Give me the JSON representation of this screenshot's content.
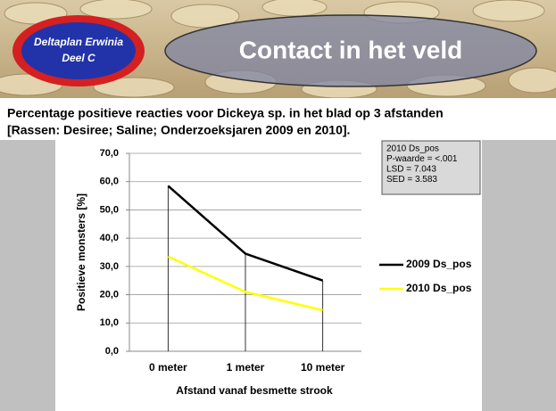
{
  "header": {
    "badge": [
      "Deltaplan Erwinia",
      "Deel C"
    ],
    "title": "Contact in het veld"
  },
  "subtitle": [
    "Percentage positieve reacties voor Dickeya sp. in het blad op 3 afstanden",
    "[Rassen: Desiree; Saline; Onderzoeksjaren 2009 en 2010]."
  ],
  "chart_data": {
    "type": "line",
    "categories": [
      "0 meter",
      "1 meter",
      "10 meter"
    ],
    "series": [
      {
        "name": "2009 Ds_pos",
        "color": "#000000",
        "values": [
          58.5,
          34.5,
          25.0
        ]
      },
      {
        "name": "2010 Ds_pos",
        "color": "#ffff00",
        "values": [
          33.5,
          21.0,
          14.5
        ]
      }
    ],
    "ylim": [
      0,
      70
    ],
    "yticks": [
      {
        "value": 0,
        "label": "0,0"
      },
      {
        "value": 10,
        "label": "10,0"
      },
      {
        "value": 20,
        "label": "20,0"
      },
      {
        "value": 30,
        "label": "30,0"
      },
      {
        "value": 40,
        "label": "40,0"
      },
      {
        "value": 50,
        "label": "50,0"
      },
      {
        "value": 60,
        "label": "60,0"
      },
      {
        "value": 70,
        "label": "70,0"
      }
    ],
    "grid": true,
    "drop_lines": true,
    "ylabel": "Positieve monsters [%]",
    "xlabel": "Afstand vanaf besmette strook",
    "annotation": [
      "2010 Ds_pos",
      "P-waarde = <.001",
      "LSD = 7.043",
      "SED = 3.583"
    ]
  }
}
